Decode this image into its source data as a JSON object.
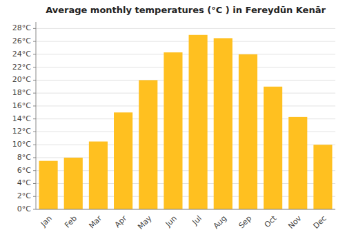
{
  "chart_data": {
    "type": "bar",
    "title": "Average monthly temperatures (°C ) in Fereydūn Kenār",
    "categories": [
      "Jan",
      "Feb",
      "Mar",
      "Apr",
      "May",
      "Jun",
      "Jul",
      "Aug",
      "Sep",
      "Oct",
      "Nov",
      "Dec"
    ],
    "values": [
      7.5,
      8.0,
      10.5,
      15.0,
      20.0,
      24.3,
      27.0,
      26.5,
      24.0,
      19.0,
      14.3,
      10.0
    ],
    "color": "#FFC020",
    "ylim": [
      0,
      29
    ],
    "yticks": [
      {
        "value": 0,
        "label": "0°C"
      },
      {
        "value": 2,
        "label": "2°C"
      },
      {
        "value": 4,
        "label": "4°C"
      },
      {
        "value": 6,
        "label": "6°C"
      },
      {
        "value": 8,
        "label": "8°C"
      },
      {
        "value": 10,
        "label": "10°C"
      },
      {
        "value": 12,
        "label": "12°C"
      },
      {
        "value": 14,
        "label": "14°C"
      },
      {
        "value": 16,
        "label": "16°C"
      },
      {
        "value": 18,
        "label": "18°C"
      },
      {
        "value": 20,
        "label": "20°C"
      },
      {
        "value": 22,
        "label": "22°C"
      },
      {
        "value": 24,
        "label": "24°C"
      },
      {
        "value": 26,
        "label": "26°C"
      },
      {
        "value": 28,
        "label": "28°C"
      }
    ],
    "grid": true
  }
}
